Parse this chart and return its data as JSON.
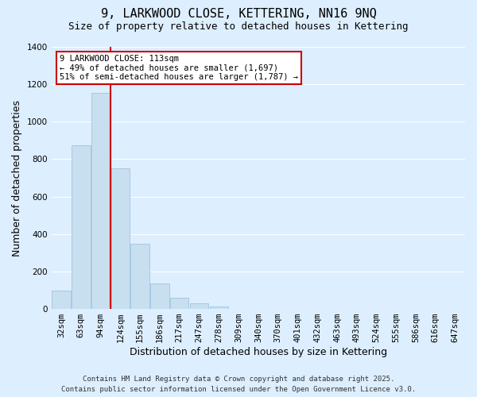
{
  "title": "9, LARKWOOD CLOSE, KETTERING, NN16 9NQ",
  "subtitle": "Size of property relative to detached houses in Kettering",
  "xlabel": "Distribution of detached houses by size in Kettering",
  "ylabel": "Number of detached properties",
  "categories": [
    "32sqm",
    "63sqm",
    "94sqm",
    "124sqm",
    "155sqm",
    "186sqm",
    "217sqm",
    "247sqm",
    "278sqm",
    "309sqm",
    "340sqm",
    "370sqm",
    "401sqm",
    "432sqm",
    "463sqm",
    "493sqm",
    "524sqm",
    "555sqm",
    "586sqm",
    "616sqm",
    "647sqm"
  ],
  "values": [
    100,
    875,
    1155,
    750,
    350,
    135,
    60,
    30,
    15,
    0,
    0,
    0,
    0,
    0,
    0,
    0,
    0,
    0,
    0,
    0,
    0
  ],
  "bar_color": "#c8dff0",
  "bar_edge_color": "#a0c4e0",
  "highlight_label": "9 LARKWOOD CLOSE: 113sqm",
  "annotation_line1": "← 49% of detached houses are smaller (1,697)",
  "annotation_line2": "51% of semi-detached houses are larger (1,787) →",
  "annotation_box_color": "#ffffff",
  "annotation_box_edge_color": "#cc0000",
  "vline_color": "#cc0000",
  "ylim": [
    0,
    1400
  ],
  "yticks": [
    0,
    200,
    400,
    600,
    800,
    1000,
    1200,
    1400
  ],
  "background_color": "#ddeeff",
  "grid_color": "#ffffff",
  "footer_line1": "Contains HM Land Registry data © Crown copyright and database right 2025.",
  "footer_line2": "Contains public sector information licensed under the Open Government Licence v3.0.",
  "title_fontsize": 11,
  "subtitle_fontsize": 9,
  "axis_label_fontsize": 9,
  "tick_fontsize": 7.5,
  "footer_fontsize": 6.5
}
